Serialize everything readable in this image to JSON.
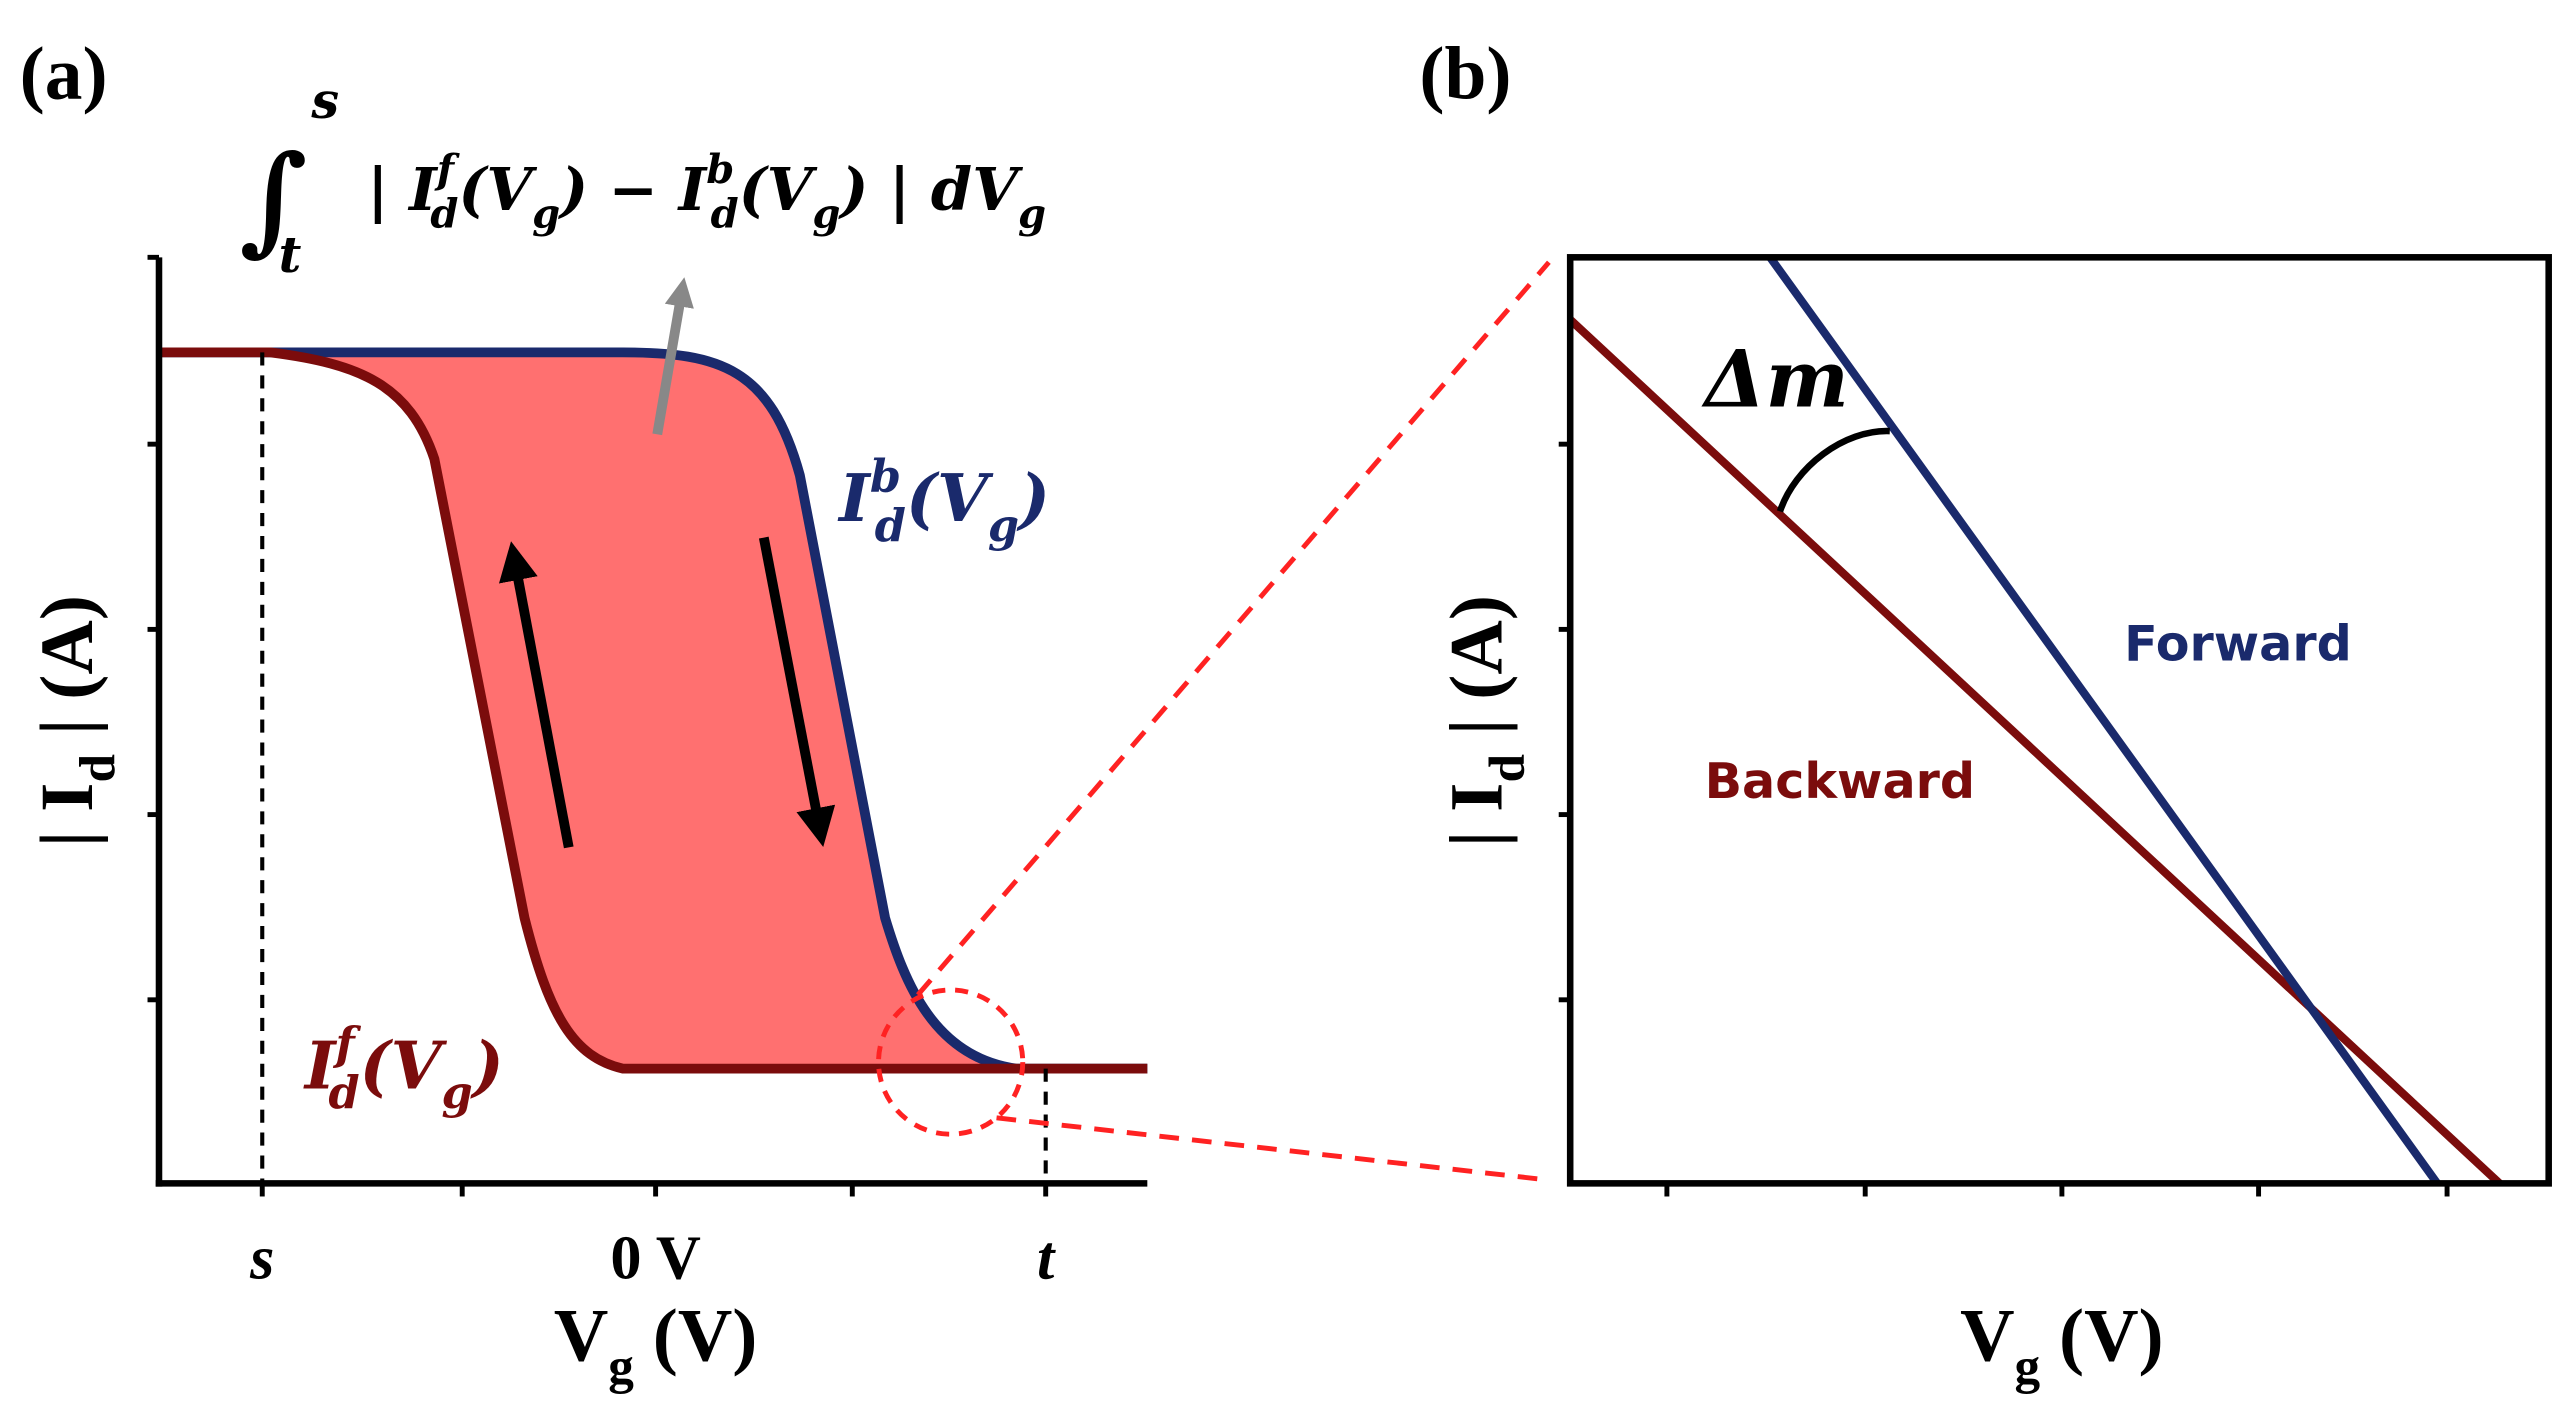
{
  "panel_a": {
    "label": "(a)",
    "formula": {
      "integral": "∫",
      "lower": "t",
      "upper": "s",
      "body": [
        {
          "text": "| I"
        },
        {
          "text": "f",
          "pos": "sup"
        },
        {
          "text": "d",
          "pos": "sub"
        },
        {
          "text": "(V"
        },
        {
          "text": "g",
          "pos": "sub"
        },
        {
          "text": ") − I"
        },
        {
          "text": "b",
          "pos": "sup"
        },
        {
          "text": "d",
          "pos": "sub"
        },
        {
          "text": "(V"
        },
        {
          "text": "g",
          "pos": "sub"
        },
        {
          "text": ") |  dV"
        },
        {
          "text": "g",
          "pos": "sub"
        }
      ]
    },
    "backward_curve_label": [
      {
        "text": "I"
      },
      {
        "text": "b",
        "pos": "sup"
      },
      {
        "text": "d",
        "pos": "sub"
      },
      {
        "text": "(V"
      },
      {
        "text": "g",
        "pos": "sub"
      },
      {
        "text": ")"
      }
    ],
    "forward_curve_label": [
      {
        "text": "I"
      },
      {
        "text": "f",
        "pos": "sup"
      },
      {
        "text": "d",
        "pos": "sub"
      },
      {
        "text": "(V"
      },
      {
        "text": "g",
        "pos": "sub"
      },
      {
        "text": ")"
      }
    ],
    "x_ticks": [
      "s",
      "0 V",
      "t"
    ],
    "x_label": [
      {
        "text": "V"
      },
      {
        "text": "g",
        "pos": "sub"
      },
      {
        "text": " (V)"
      }
    ],
    "y_label": [
      {
        "text": "| I"
      },
      {
        "text": "d",
        "pos": "sub"
      },
      {
        "text": " | (A)"
      }
    ]
  },
  "panel_b": {
    "label": "(b)",
    "angle_label": "Δm",
    "forward": "Forward",
    "backward": "Backward",
    "x_label": [
      {
        "text": "V"
      },
      {
        "text": "g",
        "pos": "sub"
      },
      {
        "text": " (V)"
      }
    ],
    "y_label": [
      {
        "text": "| I"
      },
      {
        "text": "d",
        "pos": "sub"
      },
      {
        "text": " | (A)"
      }
    ]
  }
}
